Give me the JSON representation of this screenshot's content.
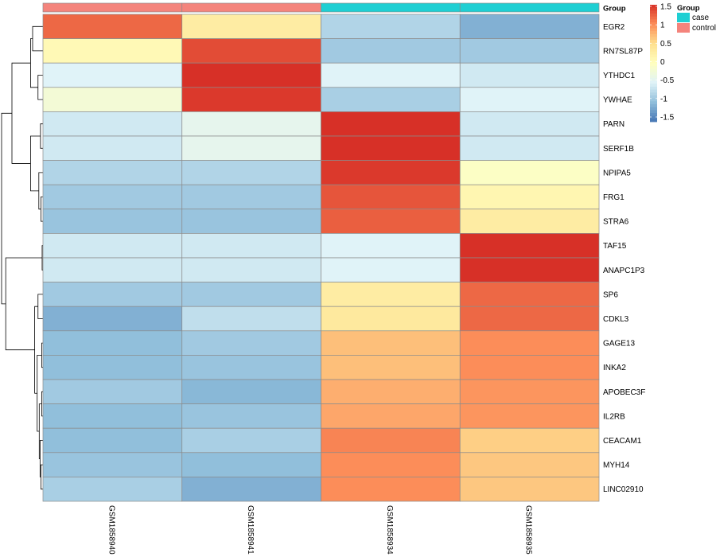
{
  "chart_data": {
    "type": "heatmap",
    "title": "",
    "samples": [
      "GSM1858940",
      "GSM1858941",
      "GSM1858934",
      "GSM1858935"
    ],
    "sample_groups": [
      "control",
      "control",
      "case",
      "case"
    ],
    "genes": [
      "EGR2",
      "RN7SL87P",
      "YTHDC1",
      "YWHAE",
      "PARN",
      "SERF1B",
      "NPIPA5",
      "FRG1",
      "STRA6",
      "TAF15",
      "ANAPC1P3",
      "SP6",
      "CDKL3",
      "GAGE13",
      "INKA2",
      "APOBEC3F",
      "IL2RB",
      "CEACAM1",
      "MYH14",
      "LINC02910"
    ],
    "values": [
      [
        1.2,
        0.3,
        -0.8,
        -1.1
      ],
      [
        0.1,
        1.35,
        -0.9,
        -0.9
      ],
      [
        -0.5,
        1.5,
        -0.5,
        -0.6
      ],
      [
        -0.2,
        1.45,
        -0.85,
        -0.5
      ],
      [
        -0.6,
        -0.4,
        1.5,
        -0.6
      ],
      [
        -0.6,
        -0.4,
        1.5,
        -0.6
      ],
      [
        -0.8,
        -0.8,
        1.45,
        -0.05
      ],
      [
        -0.9,
        -0.9,
        1.3,
        0.15
      ],
      [
        -0.95,
        -0.95,
        1.25,
        0.3
      ],
      [
        -0.6,
        -0.6,
        -0.5,
        1.5
      ],
      [
        -0.6,
        -0.6,
        -0.5,
        1.5
      ],
      [
        -0.9,
        -0.9,
        0.3,
        1.2
      ],
      [
        -1.1,
        -0.7,
        0.35,
        1.2
      ],
      [
        -1.0,
        -0.9,
        0.7,
        1.0
      ],
      [
        -1.0,
        -0.95,
        0.7,
        1.0
      ],
      [
        -0.9,
        -1.05,
        0.8,
        0.95
      ],
      [
        -1.0,
        -0.95,
        0.85,
        0.95
      ],
      [
        -1.0,
        -0.85,
        1.05,
        0.6
      ],
      [
        -0.95,
        -1.0,
        1.0,
        0.65
      ],
      [
        -0.85,
        -1.1,
        1.0,
        0.65
      ]
    ],
    "color_scale": {
      "min": -1.5,
      "max": 1.5,
      "ticks": [
        -1.5,
        -1,
        -0.5,
        0,
        0.5,
        1,
        1.5
      ],
      "tick_labels": [
        "-1.5",
        "-1",
        "-0.5",
        "0",
        "0.5",
        "1",
        "1.5"
      ],
      "stops": [
        "#4575B4",
        "#91BFDB",
        "#E0F3F8",
        "#FFFFBF",
        "#FEE090",
        "#FC8D59",
        "#D73027"
      ]
    },
    "annotation": {
      "title": "Group",
      "legend_title": "Group",
      "levels": [
        "case",
        "control"
      ],
      "colors": {
        "case": "#1FCFD3",
        "control": "#F4847C"
      }
    },
    "row_dendrogram": {
      "merges": [
        [
          0,
          1,
          0.25
        ],
        [
          2,
          3,
          0.12
        ],
        [
          -1,
          -2,
          0.3
        ],
        [
          4,
          5,
          0.06
        ],
        [
          7,
          8,
          0.05
        ],
        [
          6,
          -5,
          0.1
        ],
        [
          -4,
          -6,
          0.3
        ],
        [
          -3,
          -7,
          0.75
        ],
        [
          9,
          10,
          0.02
        ],
        [
          13,
          14,
          0.03
        ],
        [
          15,
          16,
          0.03
        ],
        [
          18,
          19,
          0.05
        ],
        [
          17,
          -12,
          0.07
        ],
        [
          -11,
          -13,
          0.09
        ],
        [
          -10,
          -14,
          0.14
        ],
        [
          11,
          12,
          0.12
        ],
        [
          -15,
          -16,
          0.2
        ],
        [
          -9,
          -17,
          0.9
        ],
        [
          -8,
          -18,
          1.0
        ]
      ]
    }
  }
}
